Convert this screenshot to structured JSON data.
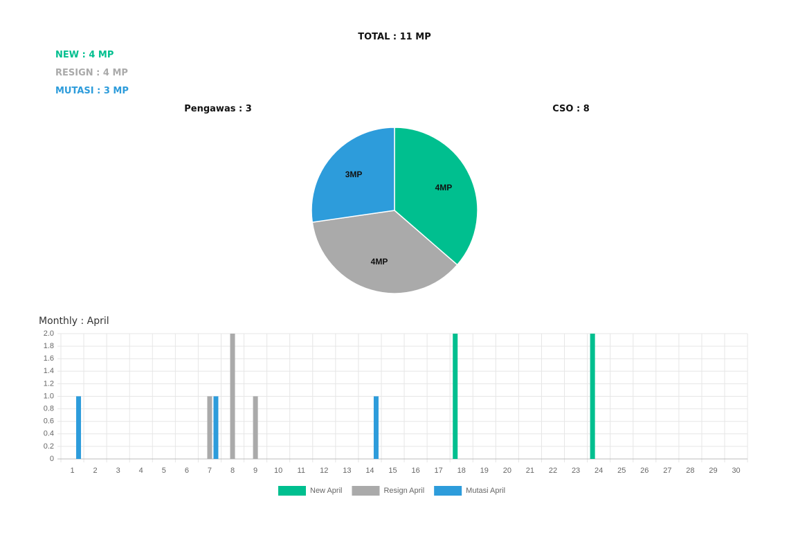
{
  "summary": {
    "total": "TOTAL : 11 MP",
    "new": "NEW : 4 MP",
    "resign": "RESIGN : 4 MP",
    "mutasi": "MUTASI : 3 MP",
    "pengawas": "Pengawas : 3",
    "cso": "CSO : 8"
  },
  "chart_data": [
    {
      "type": "pie",
      "values": [
        4,
        4,
        3
      ],
      "value_labels": [
        "4MP",
        "4MP",
        "3MP"
      ],
      "colors": [
        "#00bf8f",
        "#aaaaaa",
        "#2d9cdb"
      ]
    },
    {
      "type": "bar",
      "title": "Monthly : April",
      "categories": [
        "1",
        "2",
        "3",
        "4",
        "5",
        "6",
        "7",
        "8",
        "9",
        "10",
        "11",
        "12",
        "13",
        "14",
        "15",
        "16",
        "17",
        "18",
        "19",
        "20",
        "21",
        "22",
        "23",
        "24",
        "25",
        "26",
        "27",
        "28",
        "29",
        "30"
      ],
      "series": [
        {
          "name": "New April",
          "color": "#00bf8f",
          "values": [
            0,
            0,
            0,
            0,
            0,
            0,
            0,
            0,
            0,
            0,
            0,
            0,
            0,
            0,
            0,
            0,
            0,
            2,
            0,
            0,
            0,
            0,
            0,
            2,
            0,
            0,
            0,
            0,
            0,
            0
          ]
        },
        {
          "name": "Resign April",
          "color": "#aaaaaa",
          "values": [
            0,
            0,
            0,
            0,
            0,
            0,
            1,
            2,
            1,
            0,
            0,
            0,
            0,
            0,
            0,
            0,
            0,
            0,
            0,
            0,
            0,
            0,
            0,
            0,
            0,
            0,
            0,
            0,
            0,
            0
          ]
        },
        {
          "name": "Mutasi April",
          "color": "#2d9cdb",
          "values": [
            1,
            0,
            0,
            0,
            0,
            0,
            1,
            0,
            0,
            0,
            0,
            0,
            0,
            1,
            0,
            0,
            0,
            0,
            0,
            0,
            0,
            0,
            0,
            0,
            0,
            0,
            0,
            0,
            0,
            0
          ]
        }
      ],
      "ylim": [
        0,
        2
      ],
      "yticks": [
        0,
        0.2,
        0.4,
        0.6,
        0.8,
        {
          "value": 1,
          "label": "1.0"
        },
        1.2,
        1.4,
        1.6,
        1.8,
        {
          "value": 2,
          "label": "2.0"
        }
      ],
      "grid": true,
      "legend": "bottom"
    }
  ]
}
